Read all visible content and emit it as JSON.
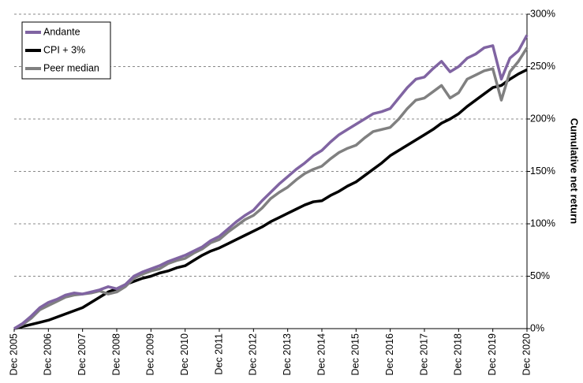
{
  "chart_data": {
    "type": "line",
    "y_label": "Cumulative net return",
    "categories": [
      "Dec 2005",
      null,
      null,
      null,
      "Dec 2006",
      null,
      null,
      null,
      "Dec 2007",
      null,
      null,
      null,
      "Dec 2008",
      null,
      null,
      null,
      "Dec 2009",
      null,
      null,
      null,
      "Dec 2010",
      null,
      null,
      null,
      "Dec 2011",
      null,
      null,
      null,
      "Dec 2012",
      null,
      null,
      null,
      "Dec 2013",
      null,
      null,
      null,
      "Dec 2014",
      null,
      null,
      null,
      "Dec 2015",
      null,
      null,
      null,
      "Dec 2016",
      null,
      null,
      null,
      "Dec 2017",
      null,
      null,
      null,
      "Dec 2018",
      null,
      null,
      null,
      "Dec 2019",
      null,
      null,
      null,
      "Dec 2020"
    ],
    "series": [
      {
        "name": "Andante",
        "color": "#8064a2",
        "values": [
          0,
          5,
          12,
          20,
          25,
          28,
          32,
          34,
          33,
          35,
          37,
          40,
          38,
          42,
          50,
          54,
          57,
          60,
          64,
          67,
          70,
          74,
          78,
          84,
          88,
          95,
          102,
          108,
          113,
          122,
          130,
          138,
          145,
          152,
          158,
          165,
          170,
          178,
          185,
          190,
          195,
          200,
          205,
          207,
          210,
          220,
          230,
          238,
          240,
          248,
          255,
          245,
          250,
          258,
          262,
          268,
          270,
          238,
          258,
          265,
          280
        ]
      },
      {
        "name": "CPI + 3%",
        "color": "#000000",
        "values": [
          0,
          2,
          4,
          6,
          8,
          11,
          14,
          17,
          20,
          25,
          30,
          35,
          38,
          42,
          45,
          48,
          50,
          53,
          55,
          58,
          60,
          65,
          70,
          74,
          77,
          81,
          85,
          89,
          93,
          97,
          102,
          106,
          110,
          114,
          118,
          121,
          122,
          127,
          131,
          136,
          140,
          146,
          152,
          158,
          165,
          170,
          175,
          180,
          185,
          190,
          196,
          200,
          205,
          212,
          218,
          224,
          230,
          232,
          238,
          243,
          247
        ]
      },
      {
        "name": "Peer median",
        "color": "#808080",
        "values": [
          0,
          4,
          10,
          18,
          22,
          26,
          30,
          32,
          33,
          34,
          36,
          33,
          35,
          40,
          48,
          52,
          55,
          57,
          62,
          65,
          67,
          72,
          76,
          82,
          85,
          92,
          98,
          104,
          108,
          115,
          124,
          130,
          135,
          142,
          148,
          152,
          155,
          162,
          168,
          172,
          175,
          182,
          188,
          190,
          192,
          200,
          210,
          218,
          220,
          226,
          232,
          220,
          225,
          238,
          242,
          246,
          248,
          218,
          245,
          255,
          268
        ]
      }
    ],
    "ylim": [
      0,
      300
    ],
    "yticks": [
      {
        "value": 0,
        "label": "0%"
      },
      {
        "value": 50,
        "label": "50%"
      },
      {
        "value": 100,
        "label": "100%"
      },
      {
        "value": 150,
        "label": "150%"
      },
      {
        "value": 200,
        "label": "200%"
      },
      {
        "value": 250,
        "label": "250%"
      },
      {
        "value": 300,
        "label": "300%"
      }
    ],
    "grid": true,
    "legend": "top-left"
  }
}
